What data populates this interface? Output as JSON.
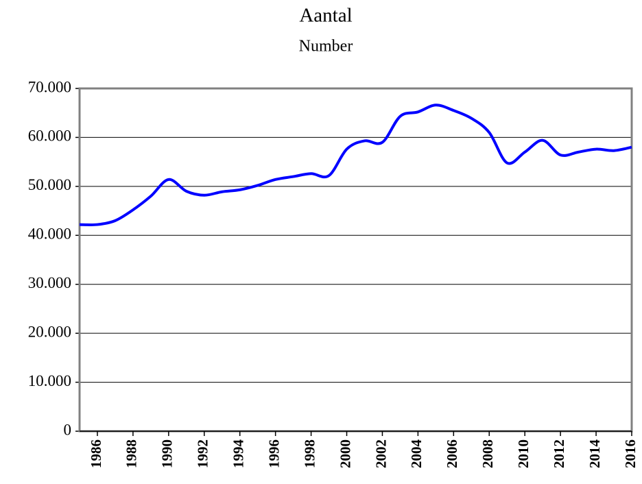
{
  "chart_data": {
    "type": "line",
    "title": "Aantal",
    "subtitle": "Number",
    "x": [
      1985,
      1986,
      1987,
      1988,
      1989,
      1990,
      1991,
      1992,
      1993,
      1994,
      1995,
      1996,
      1997,
      1998,
      1999,
      2000,
      2001,
      2002,
      2003,
      2004,
      2005,
      2006,
      2007,
      2008,
      2009,
      2010,
      2011,
      2012,
      2013,
      2014,
      2015,
      2016
    ],
    "series": [
      {
        "color": "#0000ff",
        "values": [
          42200,
          42200,
          43000,
          45200,
          48000,
          51400,
          49000,
          48200,
          48900,
          49300,
          50200,
          51400,
          52000,
          52600,
          52200,
          57600,
          59300,
          59000,
          64300,
          65200,
          66600,
          65500,
          63900,
          61000,
          54800,
          57000,
          59400,
          56400,
          57000,
          57600,
          57300,
          58000
        ]
      }
    ],
    "xlim": [
      1985,
      2016
    ],
    "xticks": [
      1986,
      1988,
      1990,
      1992,
      1994,
      1996,
      1998,
      2000,
      2002,
      2004,
      2006,
      2008,
      2010,
      2012,
      2014,
      2016
    ],
    "ylim": [
      0,
      70000
    ],
    "yticks": [
      0,
      {
        "value": 10000,
        "label": "10.000"
      },
      {
        "value": 20000,
        "label": "20.000"
      },
      {
        "value": 30000,
        "label": "30.000"
      },
      {
        "value": 40000,
        "label": "40.000"
      },
      {
        "value": 50000,
        "label": "50.000"
      },
      {
        "value": 60000,
        "label": "60.000"
      },
      {
        "value": 70000,
        "label": "70.000"
      }
    ],
    "grid": true
  }
}
